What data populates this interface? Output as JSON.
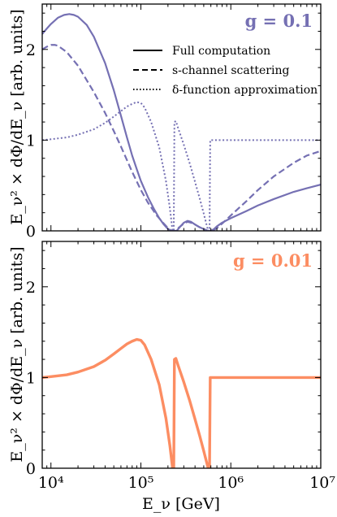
{
  "chart_data": [
    {
      "type": "line",
      "title": "g = 0.1",
      "title_color": "#7570b3",
      "xlabel": "",
      "ylabel": "E_ν² × dΦ/dE_ν [arb. units]",
      "x_scale": "log",
      "xlim": [
        8000,
        10000000
      ],
      "ylim": [
        0,
        2.5
      ],
      "yticks": [
        0,
        1,
        2
      ],
      "ytick_labels": [
        "0",
        "1",
        "2"
      ],
      "legend_position": "upper-right",
      "legend": [
        "Full computation",
        "s-channel scattering",
        "δ-function approximation"
      ],
      "series": [
        {
          "name": "Full computation",
          "style": "solid",
          "color": "#7570b3",
          "points": [
            [
              8000,
              2.17
            ],
            [
              9000,
              2.23
            ],
            [
              10000,
              2.28
            ],
            [
              12000,
              2.35
            ],
            [
              14000,
              2.38
            ],
            [
              16000,
              2.39
            ],
            [
              18000,
              2.38
            ],
            [
              20000,
              2.36
            ],
            [
              25000,
              2.27
            ],
            [
              30000,
              2.14
            ],
            [
              40000,
              1.85
            ],
            [
              50000,
              1.55
            ],
            [
              60000,
              1.27
            ],
            [
              70000,
              1.03
            ],
            [
              80000,
              0.83
            ],
            [
              90000,
              0.68
            ],
            [
              100000,
              0.55
            ],
            [
              120000,
              0.37
            ],
            [
              140000,
              0.24
            ],
            [
              160000,
              0.14
            ],
            [
              180000,
              0.07
            ],
            [
              200000,
              0.02
            ],
            [
              220000,
              0.0
            ],
            [
              235000,
              0.0
            ],
            [
              250000,
              0.0
            ],
            [
              270000,
              0.04
            ],
            [
              300000,
              0.09
            ],
            [
              330000,
              0.11
            ],
            [
              360000,
              0.1
            ],
            [
              400000,
              0.07
            ],
            [
              450000,
              0.04
            ],
            [
              500000,
              0.02
            ],
            [
              550000,
              0.0
            ],
            [
              600000,
              0.0
            ],
            [
              650000,
              0.02
            ],
            [
              700000,
              0.05
            ],
            [
              800000,
              0.09
            ],
            [
              1000000,
              0.14
            ],
            [
              1500000,
              0.22
            ],
            [
              2000000,
              0.28
            ],
            [
              3000000,
              0.35
            ],
            [
              5000000,
              0.43
            ],
            [
              7000000,
              0.47
            ],
            [
              10000000,
              0.51
            ]
          ]
        },
        {
          "name": "s-channel scattering",
          "style": "dashed",
          "color": "#7570b3",
          "points": [
            [
              8000,
              2.0
            ],
            [
              9000,
              2.03
            ],
            [
              10000,
              2.05
            ],
            [
              11000,
              2.05
            ],
            [
              12000,
              2.04
            ],
            [
              15000,
              1.97
            ],
            [
              20000,
              1.82
            ],
            [
              30000,
              1.53
            ],
            [
              40000,
              1.3
            ],
            [
              50000,
              1.1
            ],
            [
              60000,
              0.93
            ],
            [
              70000,
              0.78
            ],
            [
              80000,
              0.65
            ],
            [
              100000,
              0.45
            ],
            [
              120000,
              0.31
            ],
            [
              150000,
              0.17
            ],
            [
              180000,
              0.08
            ],
            [
              200000,
              0.03
            ],
            [
              220000,
              0.0
            ],
            [
              240000,
              0.0
            ],
            [
              260000,
              0.03
            ],
            [
              300000,
              0.08
            ],
            [
              330000,
              0.1
            ],
            [
              360000,
              0.09
            ],
            [
              400000,
              0.07
            ],
            [
              450000,
              0.04
            ],
            [
              500000,
              0.02
            ],
            [
              560000,
              0.0
            ],
            [
              620000,
              0.0
            ],
            [
              700000,
              0.03
            ],
            [
              800000,
              0.08
            ],
            [
              1000000,
              0.17
            ],
            [
              1500000,
              0.33
            ],
            [
              2000000,
              0.45
            ],
            [
              3000000,
              0.6
            ],
            [
              5000000,
              0.75
            ],
            [
              7000000,
              0.83
            ],
            [
              10000000,
              0.88
            ]
          ]
        },
        {
          "name": "δ-function approximation",
          "style": "dotted",
          "color": "#7570b3",
          "points": [
            [
              8000,
              1.0
            ],
            [
              10000,
              1.01
            ],
            [
              15000,
              1.03
            ],
            [
              20000,
              1.06
            ],
            [
              30000,
              1.12
            ],
            [
              40000,
              1.19
            ],
            [
              50000,
              1.26
            ],
            [
              60000,
              1.32
            ],
            [
              70000,
              1.37
            ],
            [
              80000,
              1.4
            ],
            [
              90000,
              1.42
            ],
            [
              100000,
              1.41
            ],
            [
              110000,
              1.36
            ],
            [
              130000,
              1.2
            ],
            [
              160000,
              0.92
            ],
            [
              190000,
              0.55
            ],
            [
              210000,
              0.25
            ],
            [
              225000,
              0.0
            ],
            [
              232000,
              0.0
            ],
            [
              236000,
              1.2
            ],
            [
              245000,
              1.21
            ],
            [
              260000,
              1.13
            ],
            [
              300000,
              0.95
            ],
            [
              350000,
              0.74
            ],
            [
              400000,
              0.54
            ],
            [
              450000,
              0.36
            ],
            [
              500000,
              0.19
            ],
            [
              540000,
              0.06
            ],
            [
              560000,
              0.0
            ],
            [
              580000,
              0.0
            ],
            [
              590000,
              1.0
            ],
            [
              650000,
              1.0
            ],
            [
              1000000,
              1.0
            ],
            [
              10000000,
              1.0
            ]
          ]
        }
      ]
    },
    {
      "type": "line",
      "title": "g = 0.01",
      "title_color": "#fc8d62",
      "xlabel": "E_ν [GeV]",
      "ylabel": "E_ν² × dΦ/dE_ν [arb. units]",
      "x_scale": "log",
      "xlim": [
        8000,
        10000000
      ],
      "ylim": [
        0,
        2.5
      ],
      "yticks": [
        0,
        1,
        2
      ],
      "ytick_labels": [
        "0",
        "1",
        "2"
      ],
      "xticks": [
        10000,
        100000,
        1000000,
        10000000
      ],
      "xtick_labels": [
        "10⁴",
        "10⁵",
        "10⁶",
        "10⁷"
      ],
      "series": [
        {
          "name": "Full computation",
          "style": "solid",
          "color": "#fc8d62",
          "points": [
            [
              8000,
              1.0
            ],
            [
              10000,
              1.01
            ],
            [
              15000,
              1.03
            ],
            [
              20000,
              1.06
            ],
            [
              30000,
              1.12
            ],
            [
              40000,
              1.19
            ],
            [
              50000,
              1.26
            ],
            [
              60000,
              1.32
            ],
            [
              70000,
              1.37
            ],
            [
              80000,
              1.4
            ],
            [
              90000,
              1.42
            ],
            [
              100000,
              1.41
            ],
            [
              110000,
              1.36
            ],
            [
              130000,
              1.2
            ],
            [
              160000,
              0.92
            ],
            [
              190000,
              0.55
            ],
            [
              210000,
              0.25
            ],
            [
              225000,
              0.0
            ],
            [
              232000,
              0.0
            ],
            [
              236000,
              1.2
            ],
            [
              245000,
              1.21
            ],
            [
              260000,
              1.13
            ],
            [
              300000,
              0.95
            ],
            [
              350000,
              0.74
            ],
            [
              400000,
              0.54
            ],
            [
              450000,
              0.36
            ],
            [
              500000,
              0.19
            ],
            [
              540000,
              0.06
            ],
            [
              560000,
              0.0
            ],
            [
              580000,
              0.0
            ],
            [
              590000,
              1.0
            ],
            [
              650000,
              1.0
            ],
            [
              1000000,
              1.0
            ],
            [
              10000000,
              1.0
            ]
          ]
        }
      ]
    }
  ]
}
